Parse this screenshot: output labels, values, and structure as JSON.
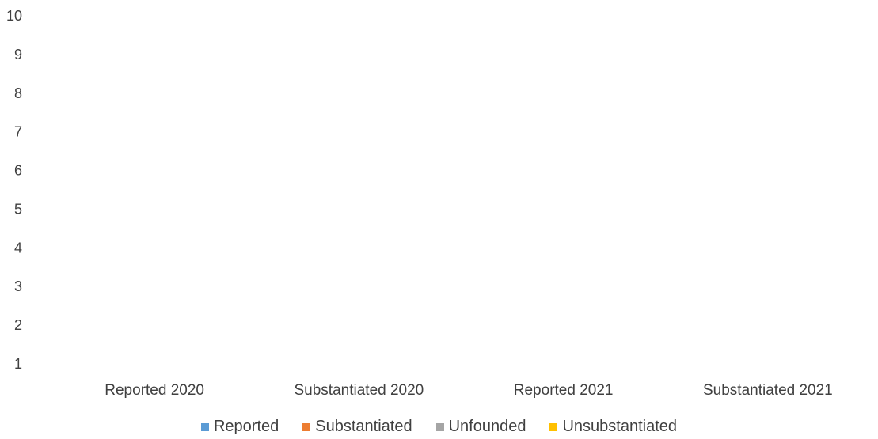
{
  "chart_data": {
    "type": "bar",
    "categories": [
      "Reported 2020",
      "Substantiated 2020",
      "Reported 2021",
      "Substantiated 2021"
    ],
    "series": [
      {
        "name": "Reported",
        "color": "#5b9bd5",
        "values": [
          0,
          0,
          0,
          0
        ]
      },
      {
        "name": "Substantiated",
        "color": "#ed7d31",
        "values": [
          0,
          0,
          0,
          0
        ]
      },
      {
        "name": "Unfounded",
        "color": "#a5a5a5",
        "values": [
          0,
          0,
          0,
          0
        ]
      },
      {
        "name": "Unsubstantiated",
        "color": "#ffc000",
        "values": [
          0,
          0,
          0,
          0
        ]
      }
    ],
    "y_ticks": [
      "1",
      "2",
      "3",
      "4",
      "5",
      "6",
      "7",
      "8",
      "9",
      "10"
    ],
    "ylim": [
      1,
      10
    ],
    "grid": false,
    "legend_position": "bottom",
    "title": "",
    "xlabel": "",
    "ylabel": ""
  }
}
